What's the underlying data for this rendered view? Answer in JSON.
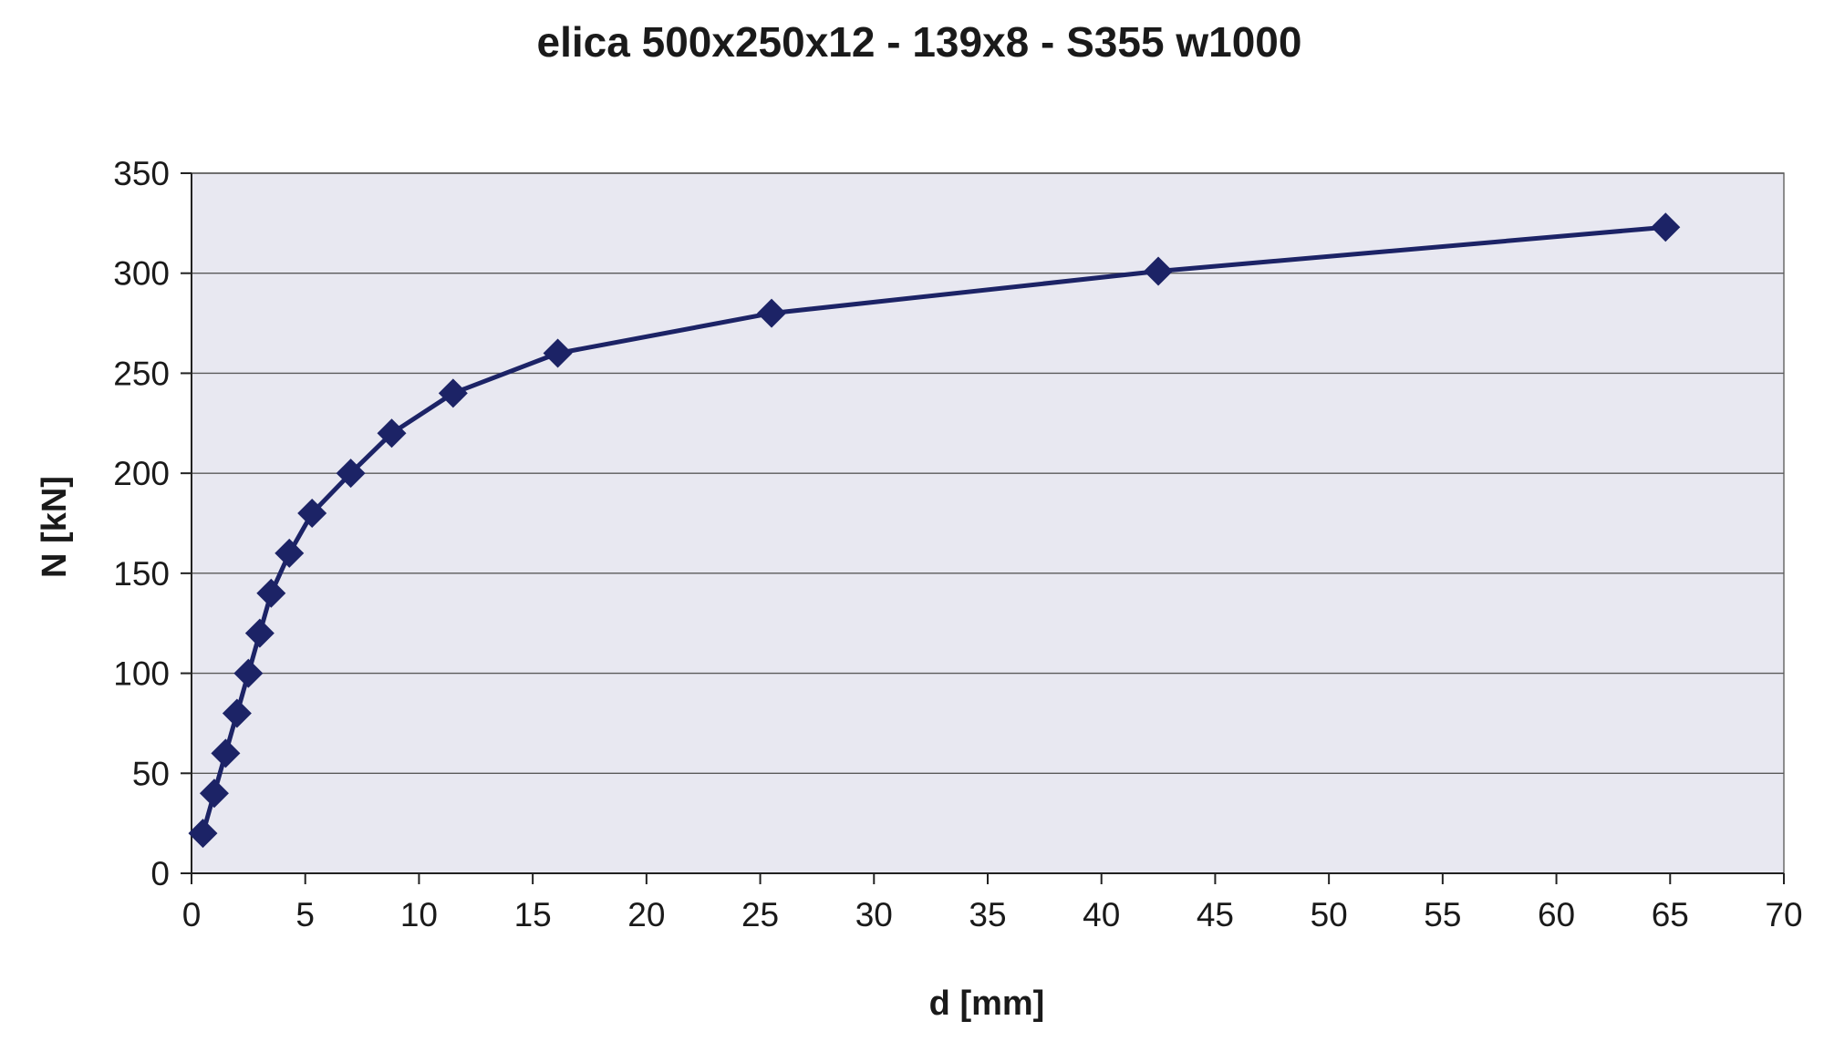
{
  "chart_data": {
    "type": "line",
    "title": "elica 500x250x12 - 139x8 - S355 w1000",
    "xlabel": "d [mm]",
    "ylabel": "N [kN]",
    "xlim": [
      0,
      70
    ],
    "ylim": [
      0,
      350
    ],
    "x_ticks": [
      0,
      5,
      10,
      15,
      20,
      25,
      30,
      35,
      40,
      45,
      50,
      55,
      60,
      65,
      70
    ],
    "y_ticks": [
      0,
      50,
      100,
      150,
      200,
      250,
      300,
      350
    ],
    "x_tick_labels": [
      "0",
      "5",
      "10",
      "15",
      "20",
      "25",
      "30",
      "35",
      "40",
      "45",
      "50",
      "55",
      "60",
      "65",
      "70"
    ],
    "y_tick_labels": [
      "0",
      "50",
      "100",
      "150",
      "200",
      "250",
      "300",
      "350"
    ],
    "grid": "horizontal",
    "legend": "none",
    "marker": "diamond",
    "colors": {
      "plot_background": "#e8e8f1",
      "series": "#1c2366",
      "gridline": "#5a5a5a"
    },
    "series": [
      {
        "x": [
          0.5,
          1.0,
          1.5,
          2.0,
          2.5,
          3.0,
          3.5,
          4.3,
          5.3,
          7.0,
          8.8,
          11.5,
          16.1,
          25.5,
          42.5,
          64.8
        ],
        "y": [
          20,
          40,
          60,
          80,
          100,
          120,
          140,
          160,
          180,
          200,
          220,
          240,
          260,
          280,
          301,
          323
        ]
      }
    ]
  }
}
